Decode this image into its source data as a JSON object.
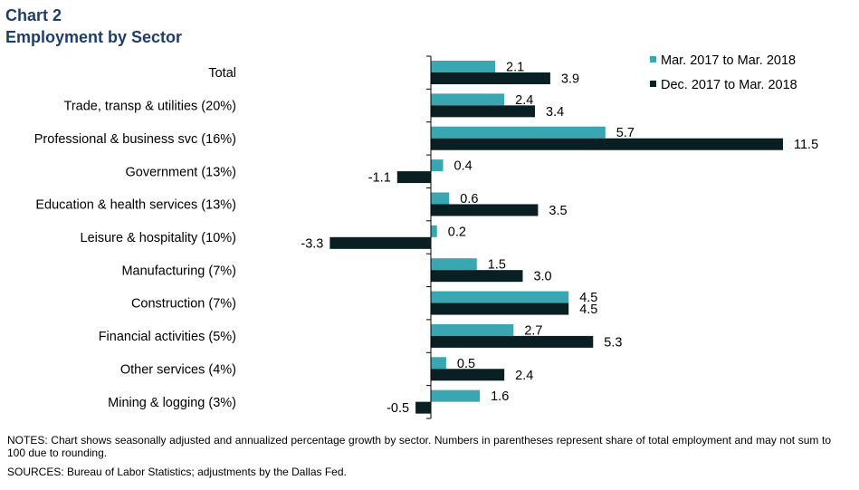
{
  "header": {
    "chart_number": "Chart 2",
    "title": "Employment by Sector"
  },
  "footer": {
    "notes": "NOTES: Chart shows seasonally adjusted and annualized percentage growth by sector. Numbers in parentheses represent share of total employment and may not sum to 100 due to rounding.",
    "sources": "SOURCES: Bureau of Labor Statistics; adjustments by the Dallas Fed."
  },
  "chart_data": {
    "type": "bar",
    "orientation": "horizontal",
    "title": "Employment by Sector",
    "categories": [
      "Total",
      "Trade, transp & utilities (20%)",
      "Professional & business svc (16%)",
      "Government (13%)",
      "Education & health services (13%)",
      "Leisure & hospitality (10%)",
      "Manufacturing (7%)",
      "Construction (7%)",
      "Financial activities (5%)",
      "Other services (4%)",
      "Mining & logging (3%)"
    ],
    "series": [
      {
        "name": "Mar. 2017 to Mar. 2018",
        "color": "#3aa6b2",
        "values": [
          2.1,
          2.4,
          5.7,
          0.4,
          0.6,
          0.2,
          1.5,
          4.5,
          2.7,
          0.5,
          1.6
        ],
        "labels": [
          "2.1",
          "2.4",
          "5.7",
          "0.4",
          "0.6",
          "0.2",
          "1.5",
          "4.5",
          "2.7",
          "0.5",
          "1.6"
        ]
      },
      {
        "name": "Dec. 2017 to Mar. 2018",
        "color": "#0a1f22",
        "values": [
          3.9,
          3.4,
          11.5,
          -1.1,
          3.5,
          -3.3,
          3.0,
          4.5,
          5.3,
          2.4,
          -0.5
        ],
        "labels": [
          "3.9",
          "3.4",
          "11.5",
          "-1.1",
          "3.5",
          "-3.3",
          "3.0",
          "4.5",
          "5.3",
          "2.4",
          "-0.5"
        ]
      }
    ],
    "xlim": [
      -3.3,
      11.5
    ],
    "legend_position": "top-right",
    "grid": false
  }
}
